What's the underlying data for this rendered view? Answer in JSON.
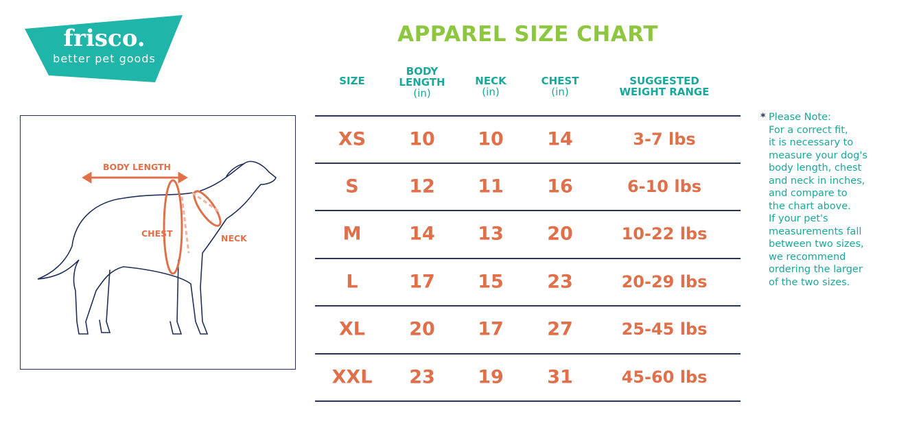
{
  "logo": {
    "brand": "frisco.",
    "tagline": "better pet goods",
    "color": "#1fb5a8"
  },
  "title": "APPAREL SIZE CHART",
  "colors": {
    "title": "#8dc63f",
    "header": "#1aa89a",
    "values": "#e0704a",
    "lines": "#2a3550"
  },
  "headers": [
    {
      "label": "SIZE",
      "unit": ""
    },
    {
      "label": "BODY\nLENGTH",
      "unit": "(in)"
    },
    {
      "label": "NECK",
      "unit": "(in)"
    },
    {
      "label": "CHEST",
      "unit": "(in)"
    },
    {
      "label": "SUGGESTED\nWEIGHT RANGE",
      "unit": ""
    }
  ],
  "rows": [
    [
      "XS",
      "10",
      "10",
      "14",
      "3-7 lbs"
    ],
    [
      "S",
      "12",
      "11",
      "16",
      "6-10 lbs"
    ],
    [
      "M",
      "14",
      "13",
      "20",
      "10-22 lbs"
    ],
    [
      "L",
      "17",
      "15",
      "23",
      "20-29 lbs"
    ],
    [
      "XL",
      "20",
      "17",
      "27",
      "25-45 lbs"
    ],
    [
      "XXL",
      "23",
      "19",
      "31",
      "45-60 lbs"
    ]
  ],
  "note": {
    "asterisk": "*",
    "text": "Please Note:\nFor a correct fit,\nit is necessary to\nmeasure your dog's\nbody length, chest\nand neck in inches,\nand compare to\nthe chart above.\nIf your pet's\nmeasurements fall\nbetween two sizes,\nwe recommend\nordering the larger\nof the two sizes."
  },
  "diagram": {
    "body_length": "BODY LENGTH",
    "chest": "CHEST",
    "neck": "NECK"
  }
}
